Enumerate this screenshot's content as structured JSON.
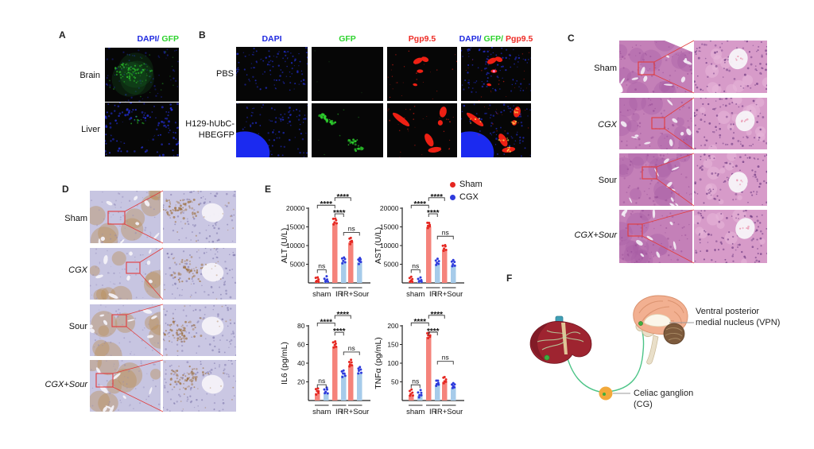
{
  "panels": {
    "a": {
      "label": "A",
      "header_parts": [
        {
          "text": "DAPI/",
          "color": "#1f2ae0"
        },
        {
          "text": " GFP",
          "color": "#2ed32e"
        }
      ],
      "rows": [
        "Brain",
        "Liver"
      ]
    },
    "b": {
      "label": "B",
      "col_headers": [
        {
          "text": "DAPI",
          "color": "#1f2ae0"
        },
        {
          "text": "GFP",
          "color": "#2ed32e"
        },
        {
          "text": "Pgp9.5",
          "color": "#ee2b25"
        }
      ],
      "merge_parts": [
        {
          "text": "DAPI/",
          "color": "#1f2ae0"
        },
        {
          "text": " GFP/",
          "color": "#2ed32e"
        },
        {
          "text": " Pgp9.5",
          "color": "#ee2b25"
        }
      ],
      "row1": "PBS",
      "row2_line1": "H129-hUbC-",
      "row2_line2": "HBEGFP"
    },
    "c": {
      "label": "C",
      "rows": [
        {
          "text": "Sham",
          "italic": false
        },
        {
          "text": "CGX",
          "italic": true
        },
        {
          "text": "Sour",
          "italic": false
        },
        {
          "text": "CGX+Sour",
          "italic": true
        }
      ]
    },
    "d": {
      "label": "D",
      "rows": [
        {
          "text": "Sham",
          "italic": false
        },
        {
          "text": "CGX",
          "italic": true
        },
        {
          "text": "Sour",
          "italic": false
        },
        {
          "text": "CGX+Sour",
          "italic": true
        }
      ]
    },
    "e": {
      "label": "E",
      "legend": [
        {
          "label": "Sham",
          "color": "#e52620"
        },
        {
          "label": "CGX",
          "color": "#2e3bdc"
        }
      ]
    },
    "f": {
      "label": "F",
      "annotations": [
        {
          "line1": "Ventral posterior",
          "line2": "medial nucleus (VPN)"
        },
        {
          "line1": "Celiac ganglion",
          "line2": "(CG)"
        }
      ]
    }
  },
  "chart_data": [
    {
      "type": "bar",
      "ylabel": "ALT  (U/L)",
      "categories": [
        "sham",
        "IR",
        "IR+Sour"
      ],
      "ylim": [
        0,
        20000
      ],
      "yticks": [
        5000,
        10000,
        15000,
        20000
      ],
      "series": [
        {
          "name": "Sham",
          "bar_color": "#f5837b",
          "point_color": "#e52620",
          "values": [
            300,
            16000,
            10800
          ]
        },
        {
          "name": "CGX",
          "bar_color": "#a6cbea",
          "point_color": "#2e3bdc",
          "values": [
            300,
            5600,
            5500
          ]
        }
      ],
      "annotations": [
        {
          "label": "ns",
          "bars": [
            0,
            1
          ],
          "y": 3500
        },
        {
          "label": "****",
          "bars": [
            0,
            2
          ],
          "y": 20800
        },
        {
          "label": "****",
          "bars": [
            2,
            3
          ],
          "y": 18500
        },
        {
          "label": "****",
          "bars": [
            2,
            4
          ],
          "y": 22800
        },
        {
          "label": "ns",
          "bars": [
            3,
            5
          ],
          "y": 13500
        }
      ]
    },
    {
      "type": "bar",
      "ylabel": "AST  (U/L)",
      "categories": [
        "sham",
        "IR",
        "IR+Sour"
      ],
      "ylim": [
        0,
        20000
      ],
      "yticks": [
        5000,
        10000,
        15000,
        20000
      ],
      "series": [
        {
          "name": "Sham",
          "bar_color": "#f5837b",
          "point_color": "#e52620",
          "values": [
            250,
            15000,
            9000
          ]
        },
        {
          "name": "CGX",
          "bar_color": "#a6cbea",
          "point_color": "#2e3bdc",
          "values": [
            250,
            5000,
            4800
          ]
        }
      ],
      "annotations": [
        {
          "label": "ns",
          "bars": [
            0,
            1
          ],
          "y": 3500
        },
        {
          "label": "****",
          "bars": [
            0,
            2
          ],
          "y": 20800
        },
        {
          "label": "****",
          "bars": [
            2,
            3
          ],
          "y": 18500
        },
        {
          "label": "****",
          "bars": [
            2,
            4
          ],
          "y": 22800
        },
        {
          "label": "ns",
          "bars": [
            3,
            5
          ],
          "y": 12500
        }
      ]
    },
    {
      "type": "bar",
      "ylabel": "IL6  (pg/mL)",
      "categories": [
        "sham",
        "IR",
        "IR+Sour"
      ],
      "ylim": [
        0,
        80
      ],
      "yticks": [
        20,
        40,
        60,
        80
      ],
      "series": [
        {
          "name": "Sham",
          "bar_color": "#f5837b",
          "point_color": "#e52620",
          "values": [
            8,
            58,
            38
          ]
        },
        {
          "name": "CGX",
          "bar_color": "#a6cbea",
          "point_color": "#2e3bdc",
          "values": [
            8.5,
            27,
            30
          ]
        }
      ],
      "annotations": [
        {
          "label": "ns",
          "bars": [
            0,
            1
          ],
          "y": 17
        },
        {
          "label": "****",
          "bars": [
            0,
            2
          ],
          "y": 83
        },
        {
          "label": "****",
          "bars": [
            2,
            3
          ],
          "y": 73
        },
        {
          "label": "****",
          "bars": [
            2,
            4
          ],
          "y": 91
        },
        {
          "label": "ns",
          "bars": [
            3,
            5
          ],
          "y": 52
        }
      ]
    },
    {
      "type": "bar",
      "ylabel": "TNFα  (pg/mL)",
      "categories": [
        "sham",
        "IR",
        "IR+Sour"
      ],
      "ylim": [
        0,
        200
      ],
      "yticks": [
        50,
        100,
        150,
        200
      ],
      "series": [
        {
          "name": "Sham",
          "bar_color": "#f5837b",
          "point_color": "#e52620",
          "values": [
            15,
            170,
            50
          ]
        },
        {
          "name": "CGX",
          "bar_color": "#a6cbea",
          "point_color": "#2e3bdc",
          "values": [
            13,
            42,
            35
          ]
        }
      ],
      "annotations": [
        {
          "label": "ns",
          "bars": [
            0,
            1
          ],
          "y": 42
        },
        {
          "label": "****",
          "bars": [
            0,
            2
          ],
          "y": 208
        },
        {
          "label": "****",
          "bars": [
            2,
            3
          ],
          "y": 183
        },
        {
          "label": "****",
          "bars": [
            2,
            4
          ],
          "y": 228
        },
        {
          "label": "ns",
          "bars": [
            3,
            5
          ],
          "y": 105
        }
      ]
    }
  ]
}
